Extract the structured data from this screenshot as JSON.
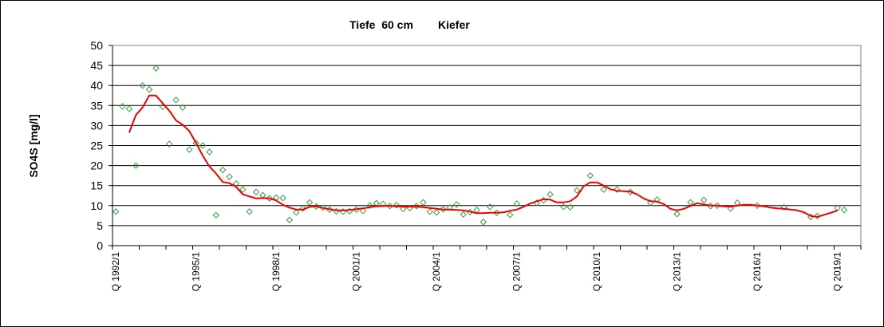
{
  "chart_data": {
    "type": "line",
    "title_left": "Tiefe  60 cm",
    "title_right": "Kiefer",
    "ylabel": "SO4S [mg/l]",
    "xlabel": "",
    "ylim": [
      0,
      50
    ],
    "ytick_step": 5,
    "grid": true,
    "legend": "none",
    "x_axis_unit": "quarter",
    "x_start": "1992/1",
    "x_end": "2019/4",
    "x_tick_labels": [
      {
        "label": "Q 1992/1",
        "quarter": "1992/1"
      },
      {
        "label": "Q 1995/1",
        "quarter": "1995/1"
      },
      {
        "label": "Q 1998/1",
        "quarter": "1998/1"
      },
      {
        "label": "Q 2001/1",
        "quarter": "2001/1"
      },
      {
        "label": "Q 2004/1",
        "quarter": "2004/1"
      },
      {
        "label": "Q 2007/1",
        "quarter": "2007/1"
      },
      {
        "label": "Q 2010/1",
        "quarter": "2010/1"
      },
      {
        "label": "Q 2013/1",
        "quarter": "2013/1"
      },
      {
        "label": "Q 2016/1",
        "quarter": "2016/1"
      },
      {
        "label": "Q 2019/1",
        "quarter": "2019/1"
      }
    ],
    "series": [
      {
        "kind": "scatter",
        "marker": "diamond",
        "color": "#3a9a3a",
        "points": [
          {
            "x": "1992/1",
            "y": 8.5
          },
          {
            "x": "1992/2",
            "y": 34.8
          },
          {
            "x": "1992/3",
            "y": 34.2
          },
          {
            "x": "1992/4",
            "y": 20.0
          },
          {
            "x": "1993/1",
            "y": 40.0
          },
          {
            "x": "1993/2",
            "y": 39.0
          },
          {
            "x": "1993/3",
            "y": 44.3
          },
          {
            "x": "1993/4",
            "y": 34.7
          },
          {
            "x": "1994/1",
            "y": 25.4
          },
          {
            "x": "1994/2",
            "y": 36.4
          },
          {
            "x": "1994/3",
            "y": 34.5
          },
          {
            "x": "1994/4",
            "y": 24.0
          },
          {
            "x": "1995/1",
            "y": 25.6
          },
          {
            "x": "1995/2",
            "y": 25.0
          },
          {
            "x": "1995/3",
            "y": 23.4
          },
          {
            "x": "1995/4",
            "y": 7.6
          },
          {
            "x": "1996/1",
            "y": 18.9
          },
          {
            "x": "1996/2",
            "y": 17.2
          },
          {
            "x": "1996/3",
            "y": 15.5
          },
          {
            "x": "1996/4",
            "y": 14.0
          },
          {
            "x": "1997/1",
            "y": 8.5
          },
          {
            "x": "1997/2",
            "y": 13.4
          },
          {
            "x": "1997/3",
            "y": 12.6
          },
          {
            "x": "1997/4",
            "y": 11.8
          },
          {
            "x": "1998/1",
            "y": 12.0
          },
          {
            "x": "1998/2",
            "y": 11.9
          },
          {
            "x": "1998/3",
            "y": 6.4
          },
          {
            "x": "1998/4",
            "y": 8.3
          },
          {
            "x": "1999/1",
            "y": 9.3
          },
          {
            "x": "1999/2",
            "y": 10.8
          },
          {
            "x": "1999/3",
            "y": 9.8
          },
          {
            "x": "1999/4",
            "y": 9.5
          },
          {
            "x": "2000/1",
            "y": 9.0
          },
          {
            "x": "2000/2",
            "y": 8.6
          },
          {
            "x": "2000/3",
            "y": 8.5
          },
          {
            "x": "2000/4",
            "y": 8.6
          },
          {
            "x": "2001/1",
            "y": 9.0
          },
          {
            "x": "2001/2",
            "y": 8.7
          },
          {
            "x": "2001/3",
            "y": 10.0
          },
          {
            "x": "2001/4",
            "y": 10.6
          },
          {
            "x": "2002/1",
            "y": 10.4
          },
          {
            "x": "2002/2",
            "y": 9.9
          },
          {
            "x": "2002/3",
            "y": 10.1
          },
          {
            "x": "2002/4",
            "y": 9.2
          },
          {
            "x": "2003/1",
            "y": 9.4
          },
          {
            "x": "2003/2",
            "y": 9.9
          },
          {
            "x": "2003/3",
            "y": 10.8
          },
          {
            "x": "2003/4",
            "y": 8.5
          },
          {
            "x": "2004/1",
            "y": 8.3
          },
          {
            "x": "2004/2",
            "y": 9.1
          },
          {
            "x": "2004/3",
            "y": 9.5
          },
          {
            "x": "2004/4",
            "y": 10.3
          },
          {
            "x": "2005/1",
            "y": 7.8
          },
          {
            "x": "2005/2",
            "y": 8.4
          },
          {
            "x": "2005/3",
            "y": 8.9
          },
          {
            "x": "2005/4",
            "y": 5.9
          },
          {
            "x": "2006/1",
            "y": 9.7
          },
          {
            "x": "2006/2",
            "y": 8.2
          },
          {
            "x": "2006/4",
            "y": 7.7
          },
          {
            "x": "2007/1",
            "y": 10.5
          },
          {
            "x": "2007/4",
            "y": 10.7
          },
          {
            "x": "2008/1",
            "y": 11.3
          },
          {
            "x": "2008/2",
            "y": 12.8
          },
          {
            "x": "2008/4",
            "y": 9.7
          },
          {
            "x": "2009/1",
            "y": 9.6
          },
          {
            "x": "2009/2",
            "y": 13.8
          },
          {
            "x": "2009/4",
            "y": 17.5
          },
          {
            "x": "2010/2",
            "y": 14.0
          },
          {
            "x": "2010/4",
            "y": 14.0
          },
          {
            "x": "2011/2",
            "y": 13.4
          },
          {
            "x": "2012/1",
            "y": 10.7
          },
          {
            "x": "2012/2",
            "y": 11.5
          },
          {
            "x": "2013/1",
            "y": 7.9
          },
          {
            "x": "2013/3",
            "y": 10.8
          },
          {
            "x": "2014/1",
            "y": 11.4
          },
          {
            "x": "2014/2",
            "y": 9.9
          },
          {
            "x": "2014/3",
            "y": 10.0
          },
          {
            "x": "2015/1",
            "y": 9.3
          },
          {
            "x": "2015/2",
            "y": 10.7
          },
          {
            "x": "2016/1",
            "y": 10.0
          },
          {
            "x": "2017/1",
            "y": 9.6
          },
          {
            "x": "2018/1",
            "y": 7.2
          },
          {
            "x": "2018/2",
            "y": 7.4
          },
          {
            "x": "2019/1",
            "y": 9.4
          },
          {
            "x": "2019/2",
            "y": 8.9
          }
        ]
      },
      {
        "kind": "line",
        "color": "#ee0000",
        "points": [
          {
            "x": "1992/3",
            "y": 28.2
          },
          {
            "x": "1992/4",
            "y": 32.6
          },
          {
            "x": "1993/1",
            "y": 34.5
          },
          {
            "x": "1993/2",
            "y": 37.5
          },
          {
            "x": "1993/3",
            "y": 37.5
          },
          {
            "x": "1993/4",
            "y": 35.6
          },
          {
            "x": "1994/1",
            "y": 33.7
          },
          {
            "x": "1994/2",
            "y": 31.3
          },
          {
            "x": "1994/3",
            "y": 30.2
          },
          {
            "x": "1994/4",
            "y": 28.6
          },
          {
            "x": "1995/1",
            "y": 25.7
          },
          {
            "x": "1995/2",
            "y": 22.5
          },
          {
            "x": "1995/3",
            "y": 19.8
          },
          {
            "x": "1995/4",
            "y": 18.0
          },
          {
            "x": "1996/1",
            "y": 15.9
          },
          {
            "x": "1996/2",
            "y": 15.6
          },
          {
            "x": "1996/3",
            "y": 14.7
          },
          {
            "x": "1996/4",
            "y": 12.8
          },
          {
            "x": "1997/1",
            "y": 12.3
          },
          {
            "x": "1997/2",
            "y": 11.8
          },
          {
            "x": "1997/3",
            "y": 11.9
          },
          {
            "x": "1997/4",
            "y": 11.8
          },
          {
            "x": "1998/1",
            "y": 11.3
          },
          {
            "x": "1998/2",
            "y": 10.2
          },
          {
            "x": "1998/3",
            "y": 9.5
          },
          {
            "x": "1998/4",
            "y": 9.0
          },
          {
            "x": "1999/1",
            "y": 9.0
          },
          {
            "x": "1999/2",
            "y": 9.7
          },
          {
            "x": "1999/3",
            "y": 9.8
          },
          {
            "x": "1999/4",
            "y": 9.4
          },
          {
            "x": "2000/1",
            "y": 9.1
          },
          {
            "x": "2000/2",
            "y": 8.8
          },
          {
            "x": "2000/3",
            "y": 8.8
          },
          {
            "x": "2000/4",
            "y": 8.9
          },
          {
            "x": "2001/1",
            "y": 9.1
          },
          {
            "x": "2001/2",
            "y": 9.3
          },
          {
            "x": "2001/3",
            "y": 9.6
          },
          {
            "x": "2001/4",
            "y": 9.8
          },
          {
            "x": "2002/1",
            "y": 9.9
          },
          {
            "x": "2002/2",
            "y": 9.9
          },
          {
            "x": "2002/3",
            "y": 9.8
          },
          {
            "x": "2002/4",
            "y": 9.7
          },
          {
            "x": "2003/1",
            "y": 9.7
          },
          {
            "x": "2003/2",
            "y": 9.7
          },
          {
            "x": "2003/3",
            "y": 9.6
          },
          {
            "x": "2003/4",
            "y": 9.4
          },
          {
            "x": "2004/1",
            "y": 9.2
          },
          {
            "x": "2004/2",
            "y": 9.0
          },
          {
            "x": "2004/3",
            "y": 9.0
          },
          {
            "x": "2004/4",
            "y": 8.9
          },
          {
            "x": "2005/1",
            "y": 8.8
          },
          {
            "x": "2005/2",
            "y": 8.5
          },
          {
            "x": "2005/3",
            "y": 8.1
          },
          {
            "x": "2005/4",
            "y": 8.1
          },
          {
            "x": "2006/1",
            "y": 8.2
          },
          {
            "x": "2006/2",
            "y": 8.2
          },
          {
            "x": "2006/3",
            "y": 8.3
          },
          {
            "x": "2006/4",
            "y": 8.7
          },
          {
            "x": "2007/1",
            "y": 9.0
          },
          {
            "x": "2007/2",
            "y": 9.7
          },
          {
            "x": "2007/3",
            "y": 10.5
          },
          {
            "x": "2007/4",
            "y": 11.1
          },
          {
            "x": "2008/1",
            "y": 11.6
          },
          {
            "x": "2008/2",
            "y": 11.5
          },
          {
            "x": "2008/3",
            "y": 10.8
          },
          {
            "x": "2008/4",
            "y": 10.8
          },
          {
            "x": "2009/1",
            "y": 11.1
          },
          {
            "x": "2009/2",
            "y": 12.3
          },
          {
            "x": "2009/3",
            "y": 14.8
          },
          {
            "x": "2009/4",
            "y": 15.8
          },
          {
            "x": "2010/1",
            "y": 15.8
          },
          {
            "x": "2010/2",
            "y": 15.0
          },
          {
            "x": "2010/3",
            "y": 14.1
          },
          {
            "x": "2010/4",
            "y": 13.7
          },
          {
            "x": "2011/1",
            "y": 13.6
          },
          {
            "x": "2011/2",
            "y": 13.5
          },
          {
            "x": "2011/3",
            "y": 12.8
          },
          {
            "x": "2011/4",
            "y": 11.8
          },
          {
            "x": "2012/1",
            "y": 11.1
          },
          {
            "x": "2012/2",
            "y": 11.0
          },
          {
            "x": "2012/3",
            "y": 10.4
          },
          {
            "x": "2012/4",
            "y": 9.2
          },
          {
            "x": "2013/1",
            "y": 8.8
          },
          {
            "x": "2013/2",
            "y": 9.2
          },
          {
            "x": "2013/3",
            "y": 9.9
          },
          {
            "x": "2013/4",
            "y": 10.6
          },
          {
            "x": "2014/1",
            "y": 10.3
          },
          {
            "x": "2014/2",
            "y": 10.0
          },
          {
            "x": "2014/3",
            "y": 10.0
          },
          {
            "x": "2014/4",
            "y": 9.8
          },
          {
            "x": "2015/1",
            "y": 9.7
          },
          {
            "x": "2015/2",
            "y": 10.0
          },
          {
            "x": "2015/3",
            "y": 10.2
          },
          {
            "x": "2015/4",
            "y": 10.2
          },
          {
            "x": "2016/1",
            "y": 10.0
          },
          {
            "x": "2016/2",
            "y": 9.8
          },
          {
            "x": "2016/3",
            "y": 9.5
          },
          {
            "x": "2016/4",
            "y": 9.3
          },
          {
            "x": "2017/1",
            "y": 9.2
          },
          {
            "x": "2017/2",
            "y": 9.0
          },
          {
            "x": "2017/3",
            "y": 8.8
          },
          {
            "x": "2017/4",
            "y": 8.3
          },
          {
            "x": "2018/1",
            "y": 7.4
          },
          {
            "x": "2018/2",
            "y": 7.2
          },
          {
            "x": "2018/3",
            "y": 7.7
          },
          {
            "x": "2018/4",
            "y": 8.2
          },
          {
            "x": "2019/1",
            "y": 8.8
          }
        ]
      }
    ]
  }
}
